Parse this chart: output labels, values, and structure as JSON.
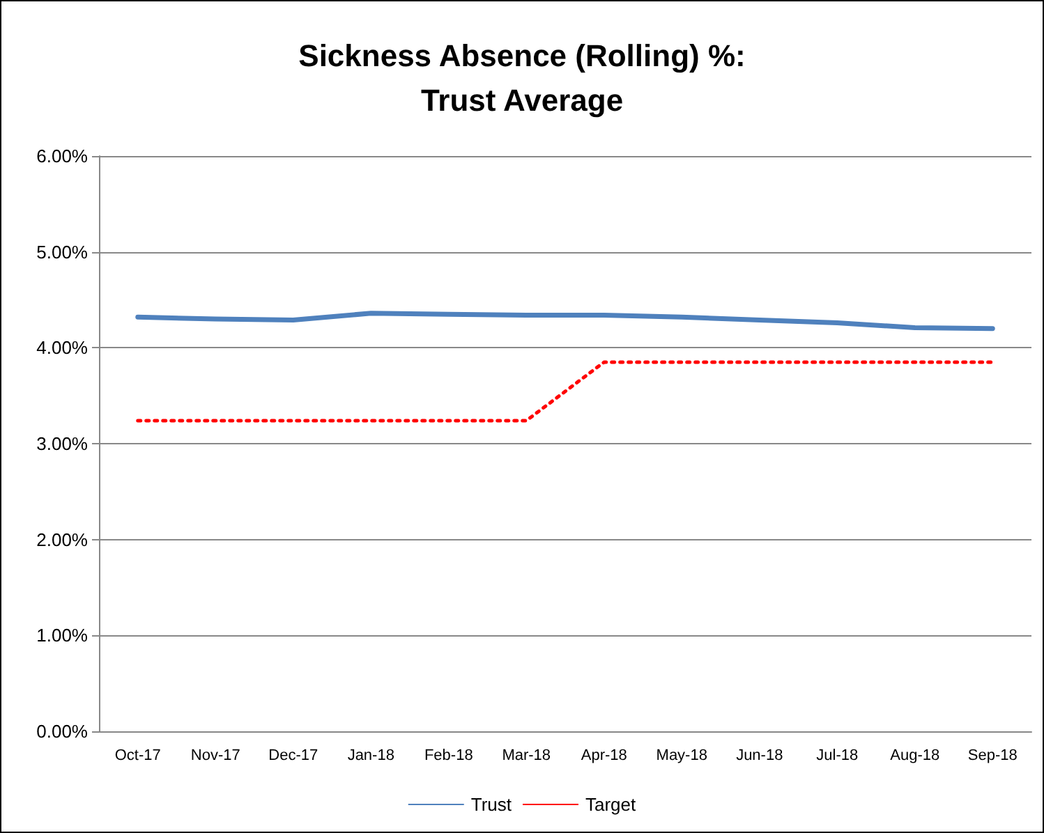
{
  "chart_data": {
    "type": "line",
    "title": "Sickness Absence (Rolling) %:\nTrust Average",
    "categories": [
      "Oct-17",
      "Nov-17",
      "Dec-17",
      "Jan-18",
      "Feb-18",
      "Mar-18",
      "Apr-18",
      "May-18",
      "Jun-18",
      "Jul-18",
      "Aug-18",
      "Sep-18"
    ],
    "series": [
      {
        "name": "Trust",
        "color": "#4f81bd",
        "line_style": "solid",
        "values": [
          4.32,
          4.3,
          4.29,
          4.36,
          4.35,
          4.34,
          4.34,
          4.32,
          4.29,
          4.26,
          4.21,
          4.2
        ]
      },
      {
        "name": "Target",
        "color": "#ff0000",
        "line_style": "dotted",
        "values": [
          3.24,
          3.24,
          3.24,
          3.24,
          3.24,
          3.24,
          3.85,
          3.85,
          3.85,
          3.85,
          3.85,
          3.85
        ]
      }
    ],
    "ylim": [
      0,
      6
    ],
    "yticks": [
      {
        "value": 0,
        "label": "0.00%"
      },
      {
        "value": 1,
        "label": "1.00%"
      },
      {
        "value": 2,
        "label": "2.00%"
      },
      {
        "value": 3,
        "label": "3.00%"
      },
      {
        "value": 4,
        "label": "4.00%"
      },
      {
        "value": 5,
        "label": "5.00%"
      },
      {
        "value": 6,
        "label": "6.00%"
      }
    ],
    "grid": "y",
    "legend": "bottom",
    "marker": "none"
  }
}
